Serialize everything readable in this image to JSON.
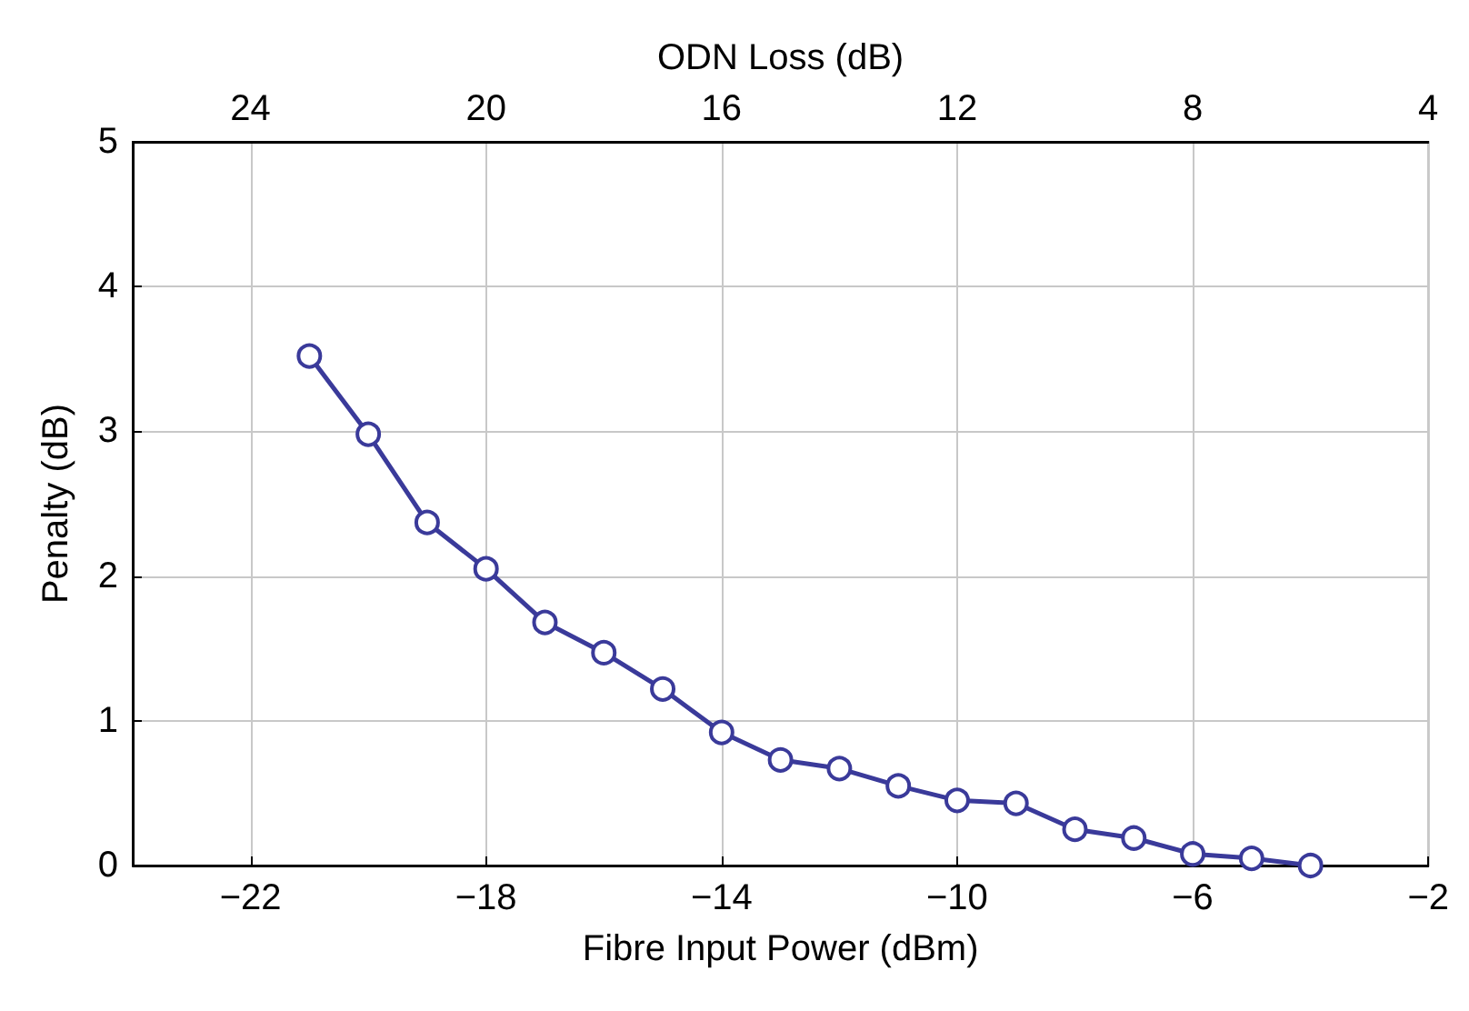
{
  "chart_data": {
    "type": "line",
    "xlabel": "Fibre Input Power (dBm)",
    "ylabel": "Penalty (dB)",
    "x2label": "ODN Loss (dB)",
    "x": [
      -21,
      -20,
      -19,
      -18,
      -17,
      -16,
      -15,
      -14,
      -13,
      -12,
      -11,
      -10,
      -9,
      -8,
      -7,
      -6,
      -5,
      -4
    ],
    "series": [
      {
        "color": "#3a3a9a",
        "values": [
          3.52,
          2.98,
          2.37,
          2.05,
          1.68,
          1.47,
          1.22,
          0.92,
          0.73,
          0.67,
          0.55,
          0.45,
          0.43,
          0.25,
          0.19,
          0.08,
          0.05,
          0.0
        ]
      }
    ],
    "xlim": [
      -24,
      -2
    ],
    "xticks": [
      {
        "value": -22,
        "label": "−22"
      },
      {
        "value": -18,
        "label": "−18"
      },
      {
        "value": -14,
        "label": "−14"
      },
      {
        "value": -10,
        "label": "−10"
      },
      {
        "value": -6,
        "label": "−6"
      },
      {
        "value": -2,
        "label": "−2"
      }
    ],
    "x2lim": [
      26,
      4
    ],
    "x2ticks": [
      24,
      20,
      16,
      12,
      8,
      4
    ],
    "ylim": [
      0,
      5
    ],
    "yticks": [
      0,
      1,
      2,
      3,
      4,
      5
    ],
    "grid": true,
    "marker": "circle",
    "line_style": "solid"
  }
}
